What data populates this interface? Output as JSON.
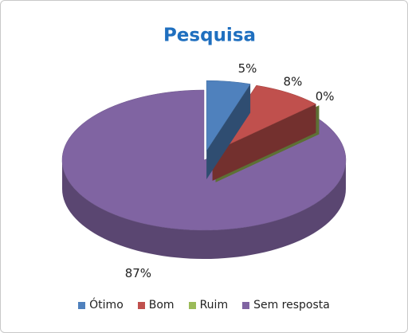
{
  "chart_data": {
    "type": "pie",
    "title": "Pesquisa",
    "categories": [
      "Ótimo",
      "Bom",
      "Ruim",
      "Sem resposta"
    ],
    "values": [
      5,
      8,
      0,
      87
    ],
    "value_labels": [
      "5%",
      "8%",
      "0%",
      "87%"
    ],
    "colors": [
      "#4f81bd",
      "#c0504d",
      "#9bbb59",
      "#8064a2"
    ],
    "legend": "bottom"
  }
}
